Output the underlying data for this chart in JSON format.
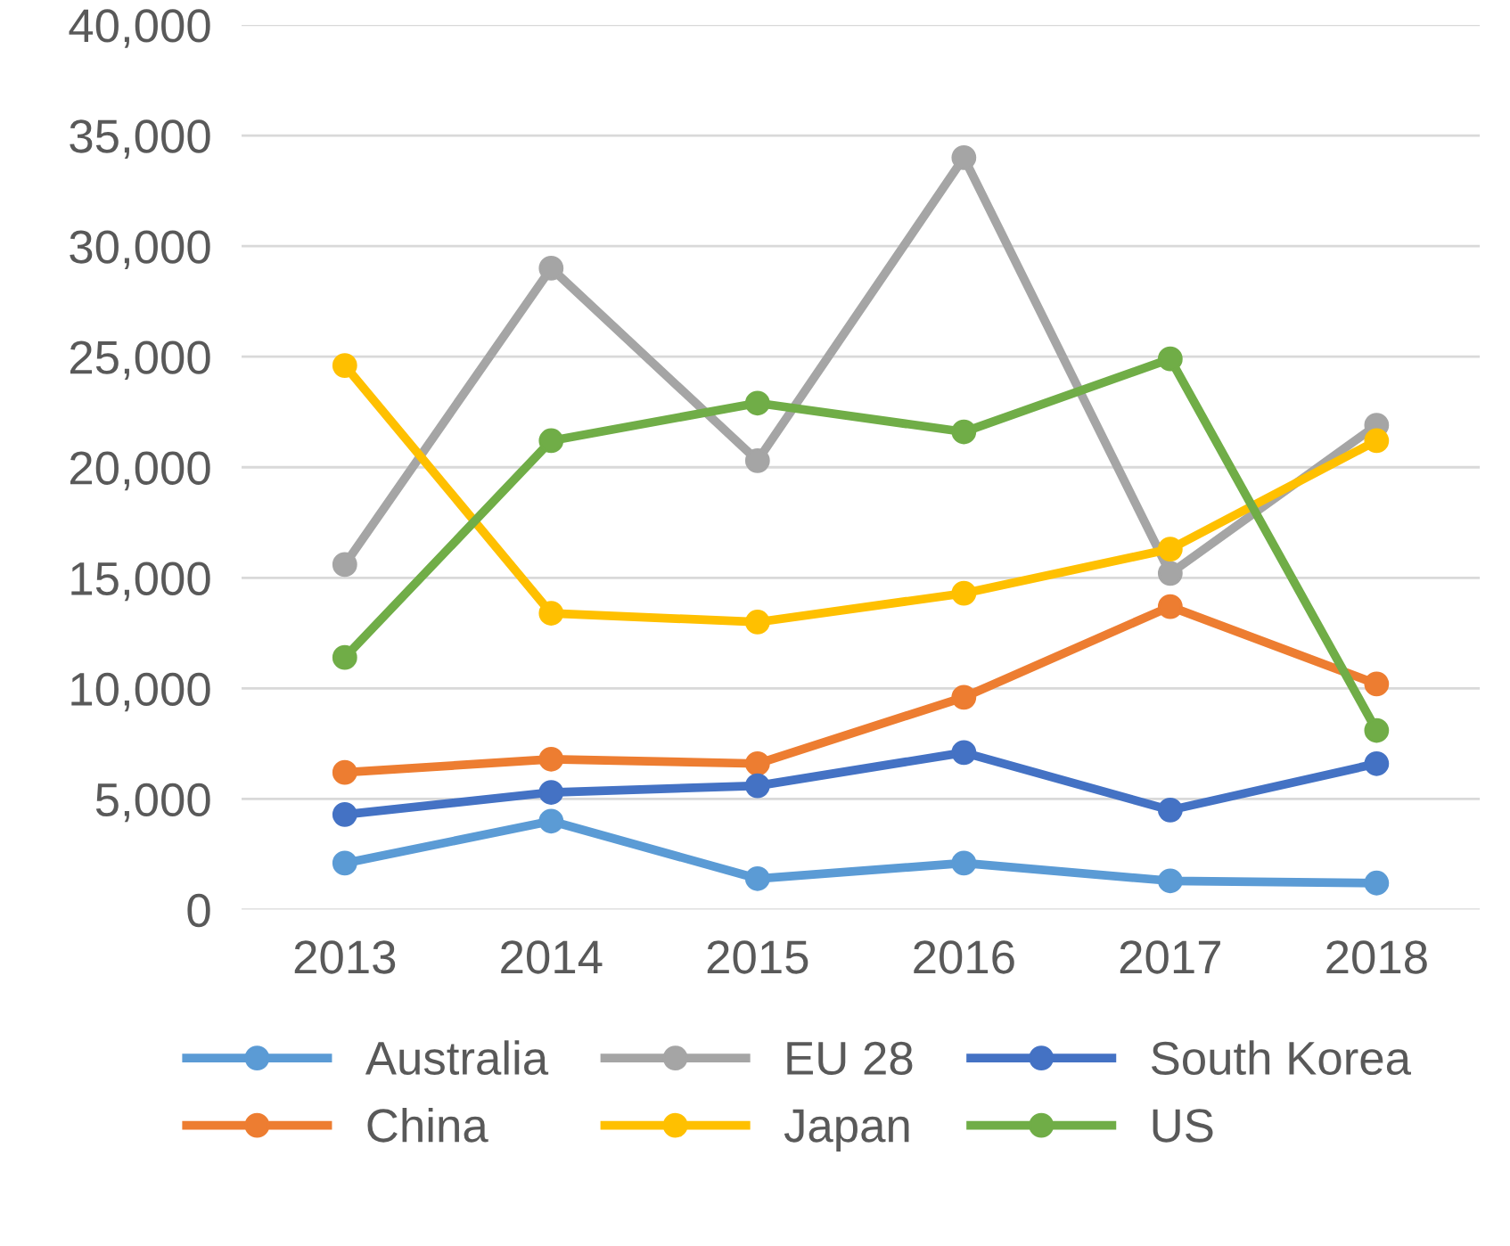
{
  "chart_data": {
    "type": "line",
    "categories": [
      "2013",
      "2014",
      "2015",
      "2016",
      "2017",
      "2018"
    ],
    "series": [
      {
        "name": "Australia",
        "color": "#5b9bd5",
        "values": [
          2100,
          4000,
          1400,
          2100,
          1300,
          1200
        ]
      },
      {
        "name": "China",
        "color": "#ed7d31",
        "values": [
          6200,
          6800,
          6600,
          9600,
          13700,
          10200
        ]
      },
      {
        "name": "EU 28",
        "color": "#a5a5a5",
        "values": [
          15600,
          29000,
          20300,
          34000,
          15200,
          21900
        ]
      },
      {
        "name": "Japan",
        "color": "#ffc000",
        "values": [
          24600,
          13400,
          13000,
          14300,
          16300,
          21200
        ]
      },
      {
        "name": "South Korea",
        "color": "#4472c4",
        "values": [
          4300,
          5300,
          5600,
          7100,
          4500,
          6600
        ]
      },
      {
        "name": "US",
        "color": "#70ad47",
        "values": [
          11400,
          21200,
          22900,
          21600,
          24900,
          8100
        ]
      }
    ],
    "ylim": [
      0,
      40000
    ],
    "yticks": [
      {
        "value": 0,
        "label": "0"
      },
      {
        "value": 5000,
        "label": "5,000"
      },
      {
        "value": 10000,
        "label": "10,000"
      },
      {
        "value": 15000,
        "label": "15,000"
      },
      {
        "value": 20000,
        "label": "20,000"
      },
      {
        "value": 25000,
        "label": "25,000"
      },
      {
        "value": 30000,
        "label": "30,000"
      },
      {
        "value": 35000,
        "label": "35,000"
      },
      {
        "value": 40000,
        "label": "40,000"
      }
    ],
    "grid": "y",
    "legend": "bottom",
    "marker": "circle",
    "line_style": "solid"
  }
}
